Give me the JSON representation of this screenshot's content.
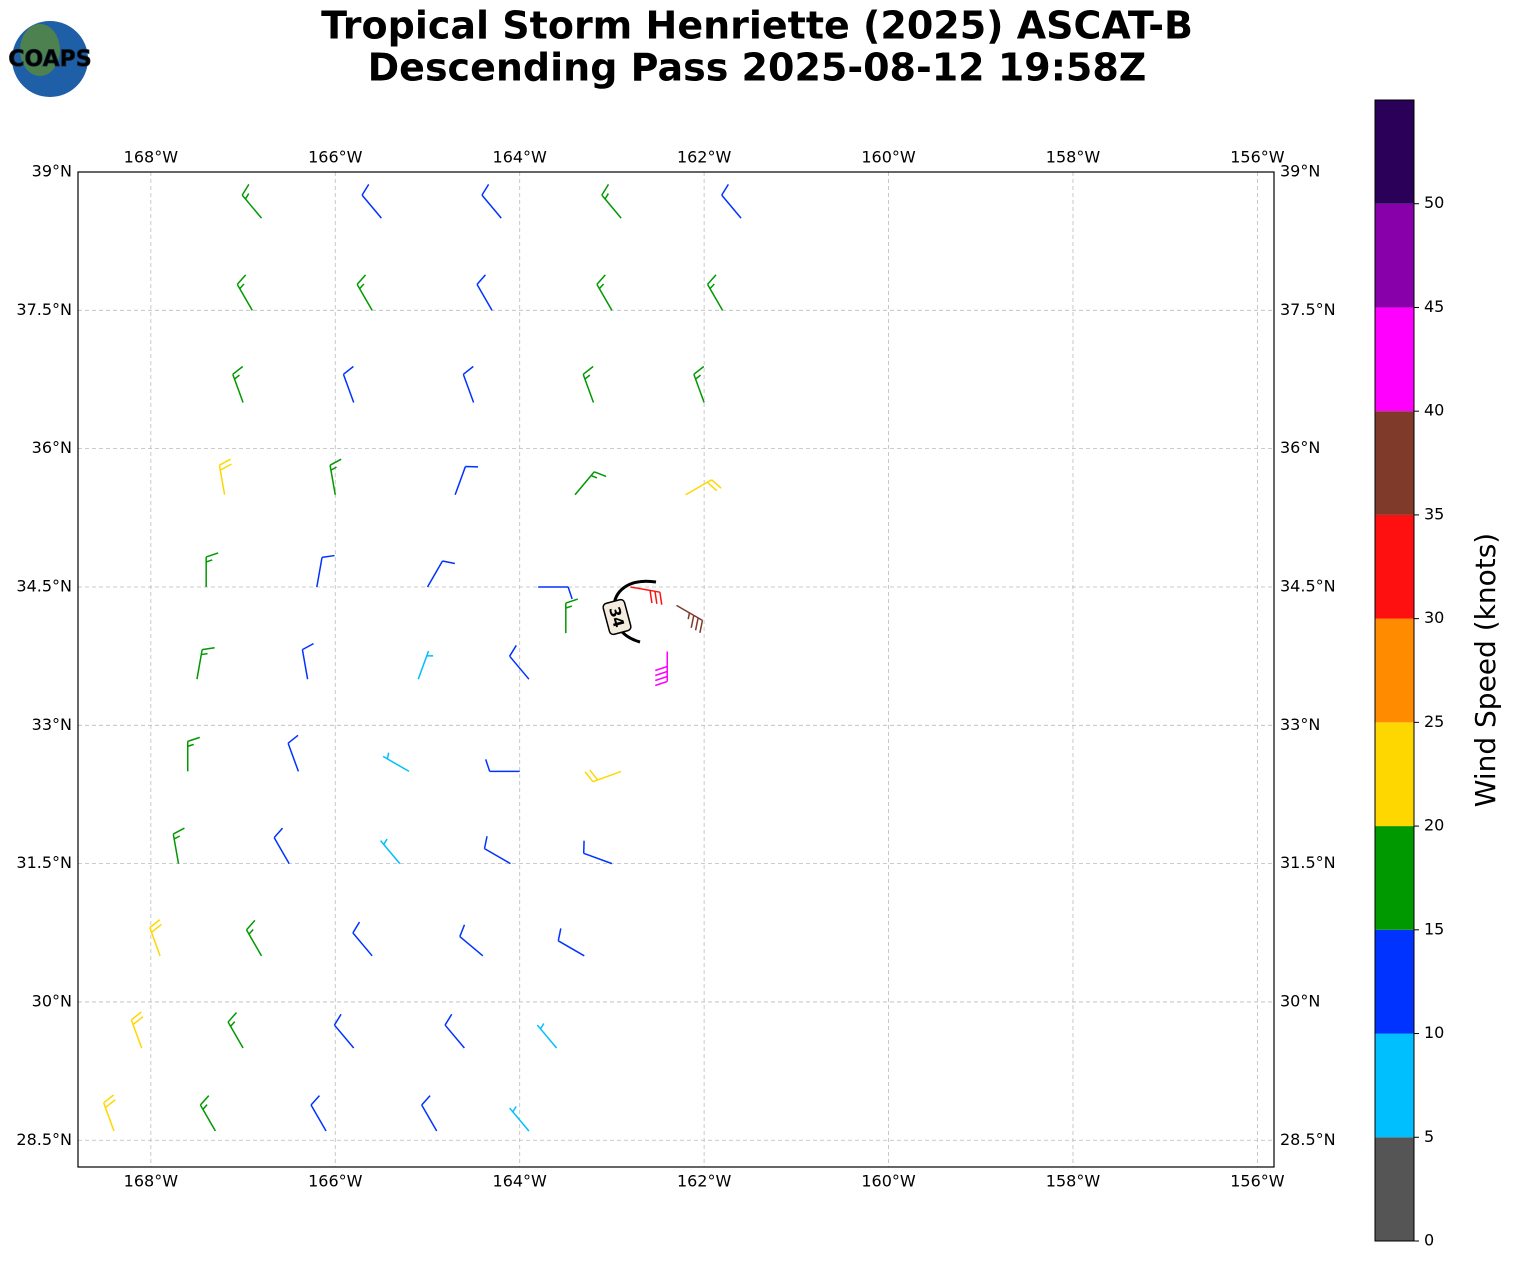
{
  "chart_data": {
    "type": "barbs",
    "title": [
      "Tropical Storm Henriette (2025) ASCAT-B",
      "Descending Pass 2025-08-12 19:58Z"
    ],
    "logo_text": "COAPS",
    "xlim": [
      -168.79,
      -155.82
    ],
    "ylim": [
      28.21,
      39.0
    ],
    "xticks": [
      {
        "value": -168,
        "label": "168°W"
      },
      {
        "value": -166,
        "label": "166°W"
      },
      {
        "value": -164,
        "label": "164°W"
      },
      {
        "value": -162,
        "label": "162°W"
      },
      {
        "value": -160,
        "label": "160°W"
      },
      {
        "value": -158,
        "label": "158°W"
      },
      {
        "value": -156,
        "label": "156°W"
      }
    ],
    "yticks": [
      {
        "value": 28.5,
        "label": "28.5°N"
      },
      {
        "value": 30,
        "label": "30°N"
      },
      {
        "value": 31.5,
        "label": "31.5°N"
      },
      {
        "value": 33,
        "label": "33°N"
      },
      {
        "value": 34.5,
        "label": "34.5°N"
      },
      {
        "value": 36,
        "label": "36°N"
      },
      {
        "value": 37.5,
        "label": "37.5°N"
      },
      {
        "value": 39,
        "label": "39°N"
      }
    ],
    "grid": true,
    "contour_label": "34",
    "colorbar": {
      "label": "Wind Speed (knots)",
      "bounds": [
        0,
        5,
        10,
        15,
        20,
        25,
        30,
        35,
        40,
        45,
        50,
        55
      ],
      "colors": [
        "#555555",
        "#00bfff",
        "#0033ff",
        "#009900",
        "#ffd700",
        "#ff8c00",
        "#ff1010",
        "#7f3a2a",
        "#ff00ff",
        "#8800aa",
        "#2a0058"
      ],
      "ticks": [
        0,
        5,
        10,
        15,
        20,
        25,
        30,
        35,
        40,
        45,
        50
      ]
    },
    "barbs": {
      "lon": [
        -166.8,
        -165.5,
        -164.2,
        -162.9,
        -161.6,
        -166.9,
        -165.6,
        -164.3,
        -163.0,
        -161.8,
        -167.0,
        -165.8,
        -164.5,
        -163.2,
        -162.0,
        -167.2,
        -166.0,
        -164.7,
        -163.4,
        -162.2,
        -167.4,
        -166.2,
        -165.0,
        -163.8,
        -162.8,
        -162.3,
        -167.5,
        -166.3,
        -165.1,
        -163.9,
        -163.5,
        -162.4,
        -167.6,
        -166.4,
        -165.2,
        -164.0,
        -162.9,
        -167.7,
        -166.5,
        -165.3,
        -164.1,
        -163.0,
        -167.9,
        -166.8,
        -165.6,
        -164.4,
        -163.3,
        -168.1,
        -167.0,
        -165.8,
        -164.6,
        -163.6,
        -168.4,
        -167.3,
        -166.1,
        -164.9,
        -163.9
      ],
      "lat": [
        38.5,
        38.5,
        38.5,
        38.5,
        38.5,
        37.5,
        37.5,
        37.5,
        37.5,
        37.5,
        36.5,
        36.5,
        36.5,
        36.5,
        36.5,
        35.5,
        35.5,
        35.5,
        35.5,
        35.5,
        34.5,
        34.5,
        34.5,
        34.5,
        34.5,
        34.3,
        33.5,
        33.5,
        33.5,
        33.5,
        34.0,
        33.8,
        32.5,
        32.5,
        32.5,
        32.5,
        32.5,
        31.5,
        31.5,
        31.5,
        31.5,
        31.5,
        30.5,
        30.5,
        30.5,
        30.5,
        30.5,
        29.5,
        29.5,
        29.5,
        29.5,
        29.5,
        28.6,
        28.6,
        28.6,
        28.6,
        28.6
      ],
      "speed": [
        17,
        13,
        14,
        16,
        12,
        18,
        16,
        13,
        17,
        16,
        17,
        13,
        12,
        15,
        18,
        22,
        16,
        12,
        17,
        22,
        18,
        13,
        12,
        14,
        33,
        37,
        17,
        13,
        7,
        11,
        17,
        42,
        17,
        12,
        7,
        10,
        22,
        18,
        12,
        9,
        11,
        13,
        22,
        17,
        13,
        12,
        12,
        23,
        17,
        13,
        12,
        8,
        23,
        18,
        14,
        12,
        8
      ],
      "dir": [
        320,
        320,
        320,
        320,
        320,
        330,
        330,
        330,
        330,
        330,
        340,
        340,
        340,
        340,
        340,
        350,
        350,
        20,
        40,
        60,
        0,
        10,
        30,
        90,
        100,
        120,
        10,
        350,
        20,
        320,
        0,
        180,
        0,
        340,
        300,
        270,
        250,
        350,
        330,
        320,
        300,
        290,
        340,
        330,
        320,
        310,
        300,
        340,
        330,
        320,
        320,
        320,
        340,
        330,
        330,
        330,
        320
      ]
    }
  }
}
